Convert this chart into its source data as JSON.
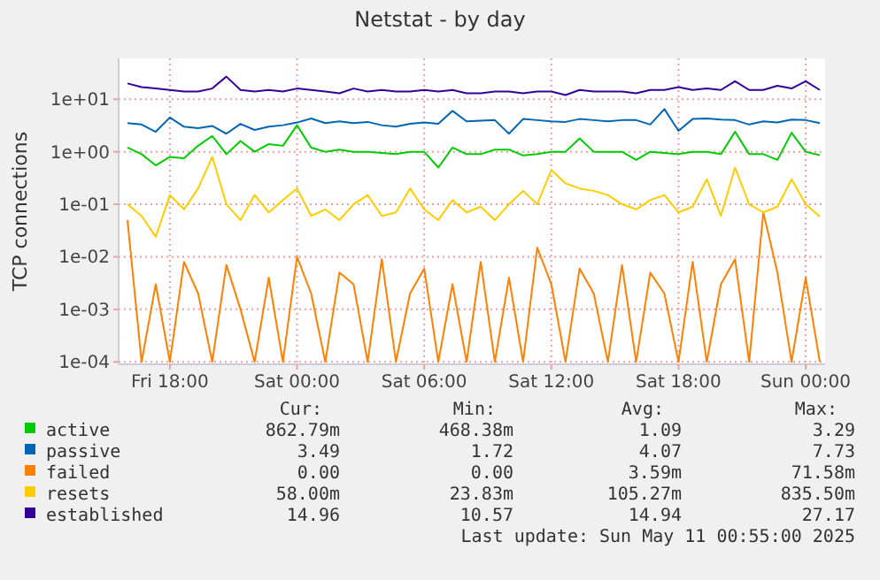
{
  "chart_data": {
    "type": "line",
    "title": "Netstat - by day",
    "ylabel": "TCP connections",
    "log": "y",
    "grid": true,
    "legend": "bottom",
    "marker": "none",
    "line_style": "solid",
    "xlim": [
      "2025-05-09T15:35",
      "2025-05-11T00:55"
    ],
    "xticks": [
      {
        "value": "2025-05-09T18:00",
        "label": "Fri 18:00"
      },
      {
        "value": "2025-05-10T00:00",
        "label": "Sat 00:00"
      },
      {
        "value": "2025-05-10T06:00",
        "label": "Sat 06:00"
      },
      {
        "value": "2025-05-10T12:00",
        "label": "Sat 12:00"
      },
      {
        "value": "2025-05-10T18:00",
        "label": "Sat 18:00"
      },
      {
        "value": "2025-05-11T00:00",
        "label": "Sun 00:00"
      }
    ],
    "ylim": [
      9e-05,
      60
    ],
    "yticks": [
      {
        "value": 0.0001,
        "label": "1e-04"
      },
      {
        "value": 0.001,
        "label": "1e-03"
      },
      {
        "value": 0.01,
        "label": "1e-02"
      },
      {
        "value": 0.1,
        "label": "1e-01"
      },
      {
        "value": 1,
        "label": "1e+00"
      },
      {
        "value": 10,
        "label": "1e+01"
      }
    ],
    "x": [
      "2025-05-09T16:00",
      "2025-05-09T16:40",
      "2025-05-09T17:20",
      "2025-05-09T18:00",
      "2025-05-09T18:40",
      "2025-05-09T19:20",
      "2025-05-09T20:00",
      "2025-05-09T20:40",
      "2025-05-09T21:20",
      "2025-05-09T22:00",
      "2025-05-09T22:40",
      "2025-05-09T23:20",
      "2025-05-10T00:00",
      "2025-05-10T00:40",
      "2025-05-10T01:20",
      "2025-05-10T02:00",
      "2025-05-10T02:40",
      "2025-05-10T03:20",
      "2025-05-10T04:00",
      "2025-05-10T04:40",
      "2025-05-10T05:20",
      "2025-05-10T06:00",
      "2025-05-10T06:40",
      "2025-05-10T07:20",
      "2025-05-10T08:00",
      "2025-05-10T08:40",
      "2025-05-10T09:20",
      "2025-05-10T10:00",
      "2025-05-10T10:40",
      "2025-05-10T11:20",
      "2025-05-10T12:00",
      "2025-05-10T12:40",
      "2025-05-10T13:20",
      "2025-05-10T14:00",
      "2025-05-10T14:40",
      "2025-05-10T15:20",
      "2025-05-10T16:00",
      "2025-05-10T16:40",
      "2025-05-10T17:20",
      "2025-05-10T18:00",
      "2025-05-10T18:40",
      "2025-05-10T19:20",
      "2025-05-10T20:00",
      "2025-05-10T20:40",
      "2025-05-10T21:20",
      "2025-05-10T22:00",
      "2025-05-10T22:40",
      "2025-05-10T23:20",
      "2025-05-11T00:00",
      "2025-05-11T00:40"
    ],
    "series": [
      {
        "name": "active",
        "color": "#00cc00",
        "values": [
          1.2,
          0.9,
          0.55,
          0.8,
          0.75,
          1.3,
          2.0,
          0.9,
          1.6,
          1.0,
          1.4,
          1.3,
          3.2,
          1.2,
          1.0,
          1.1,
          1.0,
          1.0,
          0.95,
          0.9,
          1.0,
          1.0,
          0.5,
          1.2,
          0.9,
          0.9,
          1.1,
          1.1,
          0.85,
          0.9,
          1.0,
          1.0,
          1.8,
          1.0,
          1.0,
          1.0,
          0.7,
          1.0,
          0.95,
          0.9,
          1.0,
          1.0,
          0.9,
          2.4,
          0.9,
          0.9,
          0.7,
          2.3,
          1.0,
          0.86
        ]
      },
      {
        "name": "passive",
        "color": "#0066b3",
        "values": [
          3.5,
          3.3,
          2.4,
          4.5,
          3.0,
          2.8,
          3.1,
          2.2,
          3.4,
          2.6,
          3.0,
          3.2,
          3.6,
          4.3,
          3.5,
          3.8,
          3.5,
          3.7,
          3.2,
          3.0,
          3.4,
          3.6,
          3.4,
          6.0,
          3.8,
          3.9,
          4.0,
          2.2,
          4.2,
          4.0,
          3.8,
          3.7,
          4.2,
          4.0,
          3.8,
          4.0,
          4.0,
          3.3,
          6.5,
          2.5,
          4.2,
          4.3,
          4.1,
          4.0,
          3.3,
          3.8,
          3.6,
          4.1,
          4.0,
          3.5
        ]
      },
      {
        "name": "failed",
        "color": "#ff8000",
        "values": [
          0.05,
          0.0001,
          0.003,
          0.0001,
          0.008,
          0.002,
          0.0001,
          0.007,
          0.001,
          0.0001,
          0.004,
          0.0001,
          0.01,
          0.002,
          0.0001,
          0.005,
          0.003,
          0.0001,
          0.009,
          0.0001,
          0.002,
          0.006,
          0.0001,
          0.003,
          0.0001,
          0.008,
          0.0001,
          0.004,
          0.0001,
          0.015,
          0.003,
          0.0001,
          0.006,
          0.002,
          0.0001,
          0.007,
          0.0001,
          0.005,
          0.002,
          0.0001,
          0.008,
          0.0001,
          0.003,
          0.009,
          0.0001,
          0.07,
          0.005,
          0.0001,
          0.004,
          0.0001
        ]
      },
      {
        "name": "resets",
        "color": "#ffcc00",
        "values": [
          0.1,
          0.06,
          0.024,
          0.15,
          0.08,
          0.2,
          0.8,
          0.1,
          0.05,
          0.15,
          0.07,
          0.12,
          0.2,
          0.06,
          0.08,
          0.05,
          0.1,
          0.15,
          0.06,
          0.07,
          0.2,
          0.08,
          0.05,
          0.12,
          0.07,
          0.09,
          0.05,
          0.1,
          0.18,
          0.1,
          0.45,
          0.25,
          0.2,
          0.18,
          0.15,
          0.1,
          0.08,
          0.12,
          0.15,
          0.07,
          0.09,
          0.3,
          0.06,
          0.5,
          0.1,
          0.07,
          0.09,
          0.3,
          0.1,
          0.058
        ]
      },
      {
        "name": "established",
        "color": "#330099",
        "values": [
          20,
          17,
          16,
          15,
          14,
          14,
          16,
          27,
          15,
          14,
          15,
          14,
          16,
          15,
          14,
          13,
          16,
          14,
          15,
          14,
          14,
          15,
          14,
          15,
          13,
          13,
          14,
          14,
          13,
          14,
          14,
          12,
          15,
          14,
          14,
          14,
          13,
          15,
          15,
          17,
          15,
          16,
          15,
          22,
          15,
          15,
          18,
          16,
          22,
          15
        ]
      }
    ],
    "annotations": [
      "Cur:",
      "Min:",
      "Avg:",
      "Max:",
      "862.79m",
      "468.38m",
      "1.09",
      "3.29",
      "3.49",
      "1.72",
      "4.07",
      "7.73",
      "0.00",
      "0.00",
      "3.59m",
      "71.58m",
      "58.00m",
      "23.83m",
      "105.27m",
      "835.50m",
      "14.96",
      "10.57",
      "14.94",
      "27.17",
      "Last update: Sun May 11 00:55:00 2025"
    ]
  }
}
